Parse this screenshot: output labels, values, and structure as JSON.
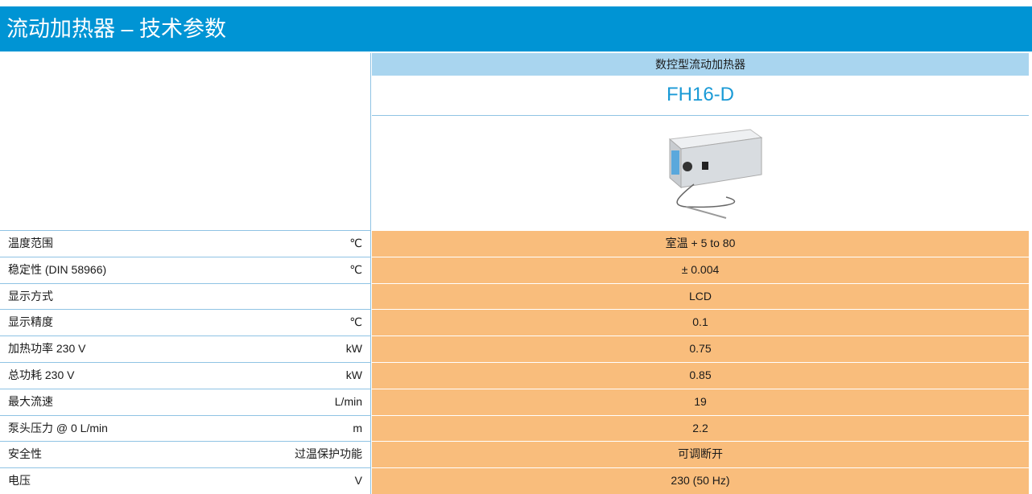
{
  "header": {
    "title": "流动加热器 – 技术参数"
  },
  "table": {
    "column_header": "数控型流动加热器",
    "model": "FH16-D",
    "rows": [
      {
        "label": "温度范围",
        "unit": "℃",
        "value": "室温 + 5 to 80"
      },
      {
        "label": "稳定性 (DIN 58966)",
        "unit": "℃",
        "value": "± 0.004"
      },
      {
        "label": "显示方式",
        "value": "LCD"
      },
      {
        "label": "显示精度",
        "unit": "℃",
        "value": "0.1"
      },
      {
        "label": "加热功率 230 V",
        "unit": "kW",
        "value": "0.75"
      },
      {
        "label": "总功耗  230 V",
        "unit": "kW",
        "value": "0.85"
      },
      {
        "label": "最大流速",
        "unit": "L/min",
        "value": "19"
      },
      {
        "label": "泵头压力 @ 0 L/min",
        "unit": "m",
        "value": "2.2"
      },
      {
        "label": "安全性",
        "unit": "过温保护功能",
        "value": "可调断开"
      },
      {
        "label": "电压",
        "unit": "V",
        "value": "230 (50 Hz)"
      }
    ]
  }
}
